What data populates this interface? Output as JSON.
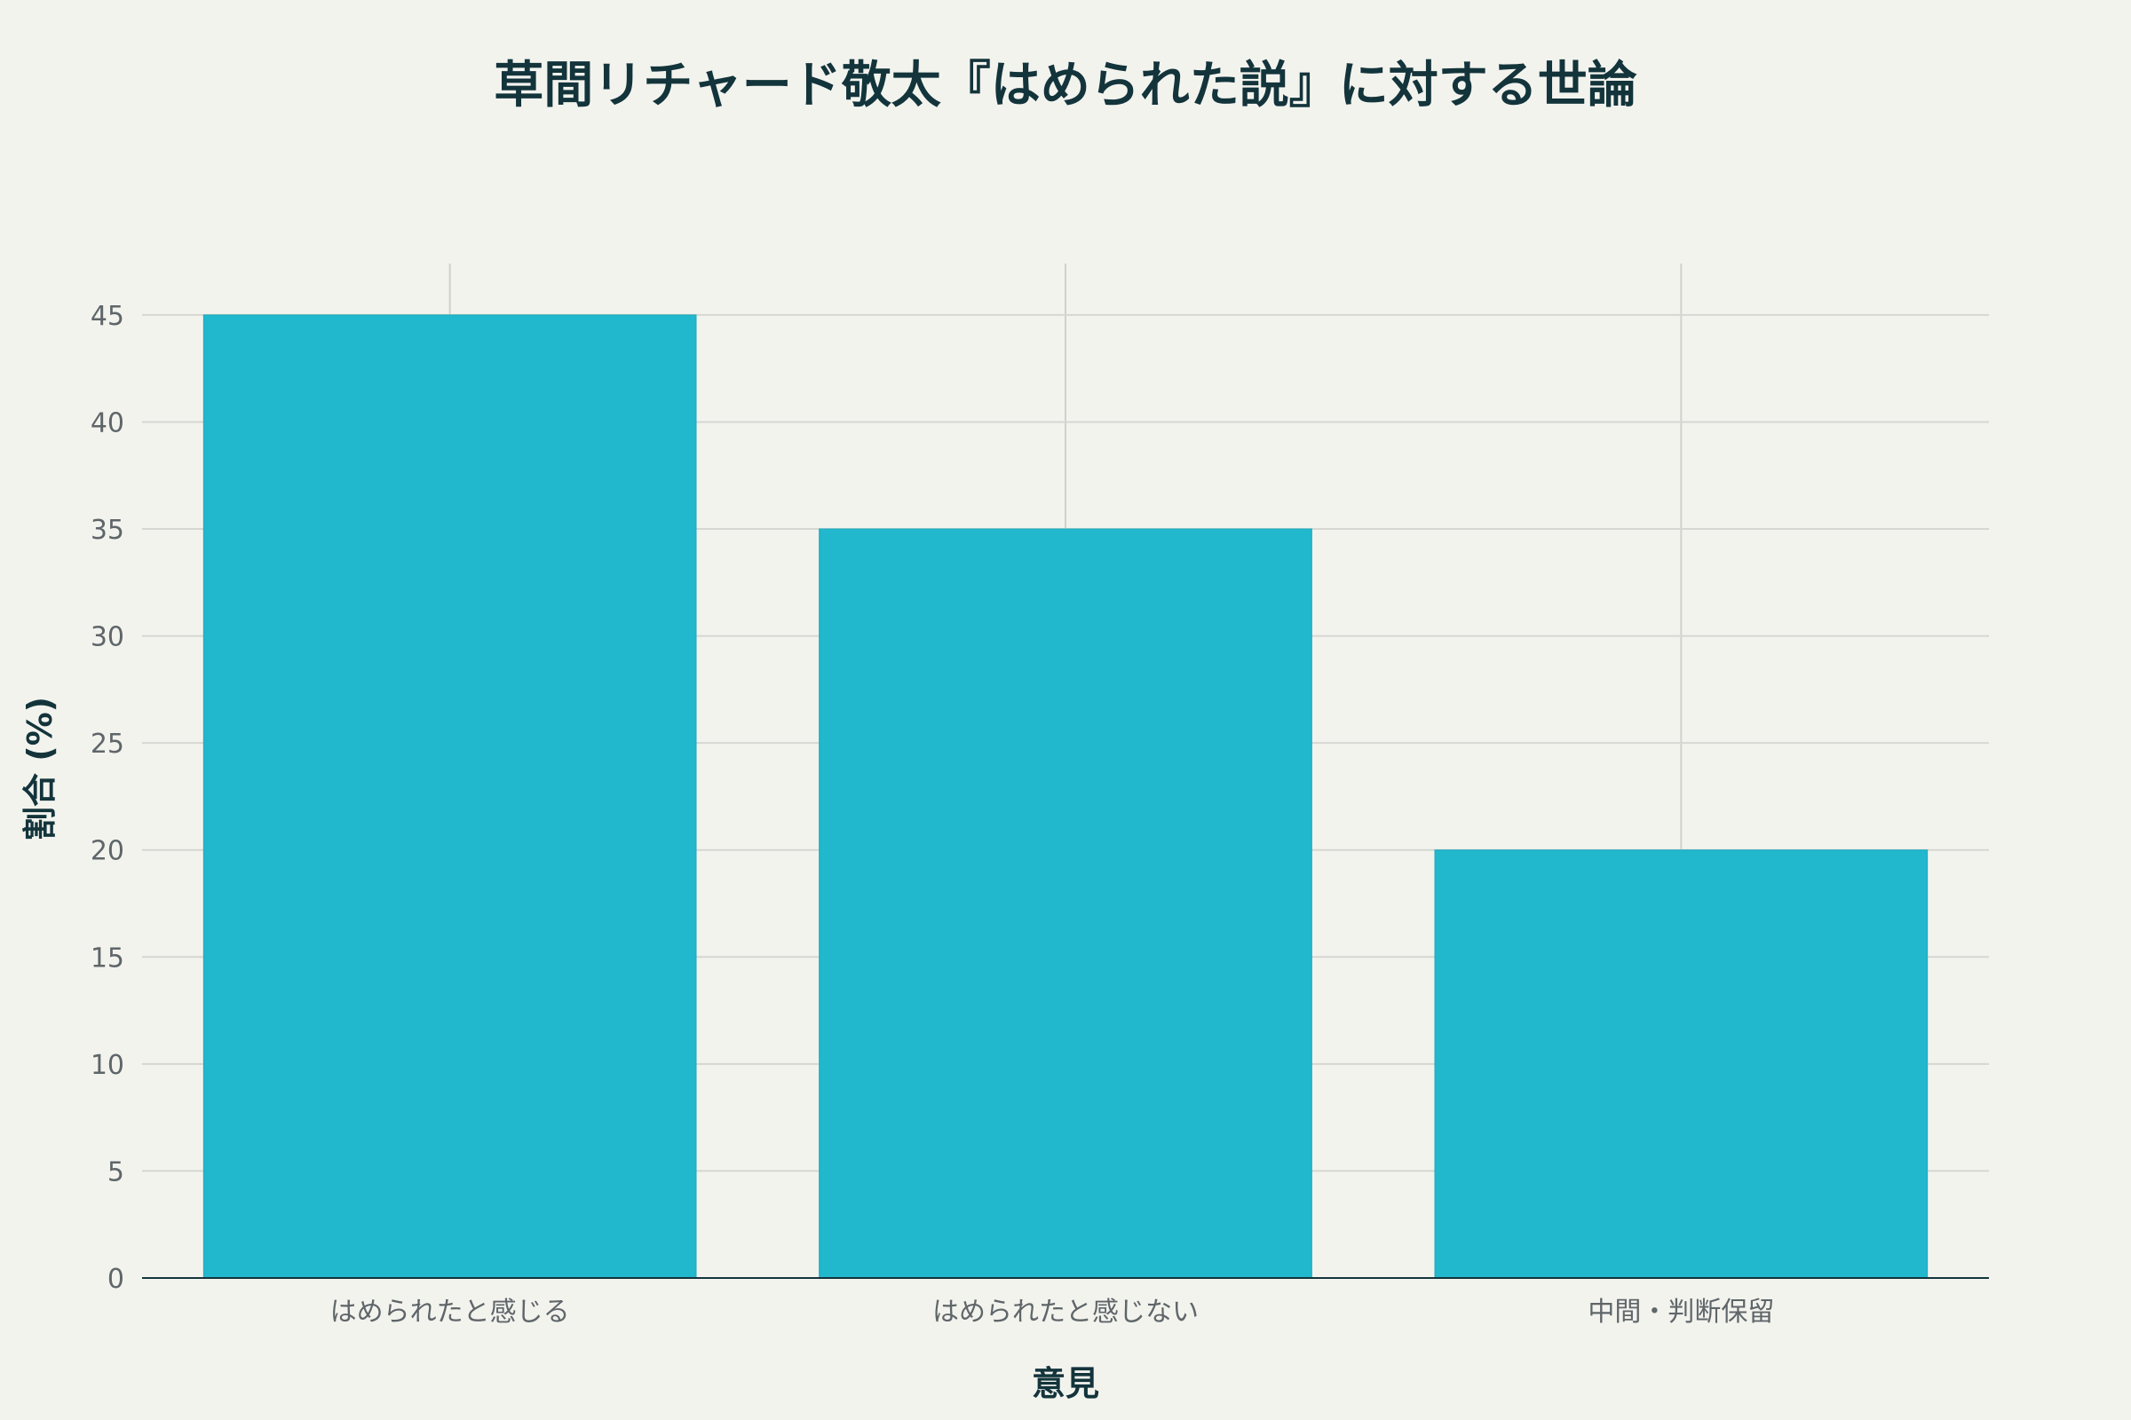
{
  "chart_data": {
    "type": "bar",
    "title": "草間リチャード敬太『はめられた説』に対する世論",
    "xlabel": "意見",
    "ylabel": "割合 (%)",
    "categories": [
      "はめられたと感じる",
      "はめられたと感じない",
      "中間・判断保留"
    ],
    "values": [
      45,
      35,
      20
    ],
    "ylim": [
      0,
      47.4
    ],
    "yticks": [
      0,
      5,
      10,
      15,
      20,
      25,
      30,
      35,
      40,
      45
    ],
    "grid": true,
    "legend": "none"
  },
  "colors": {
    "background": "#f3f3ee",
    "bar": "#21b7cc",
    "title": "#13343b",
    "tick": "#5f6669",
    "grid": "#d6d6d2"
  }
}
